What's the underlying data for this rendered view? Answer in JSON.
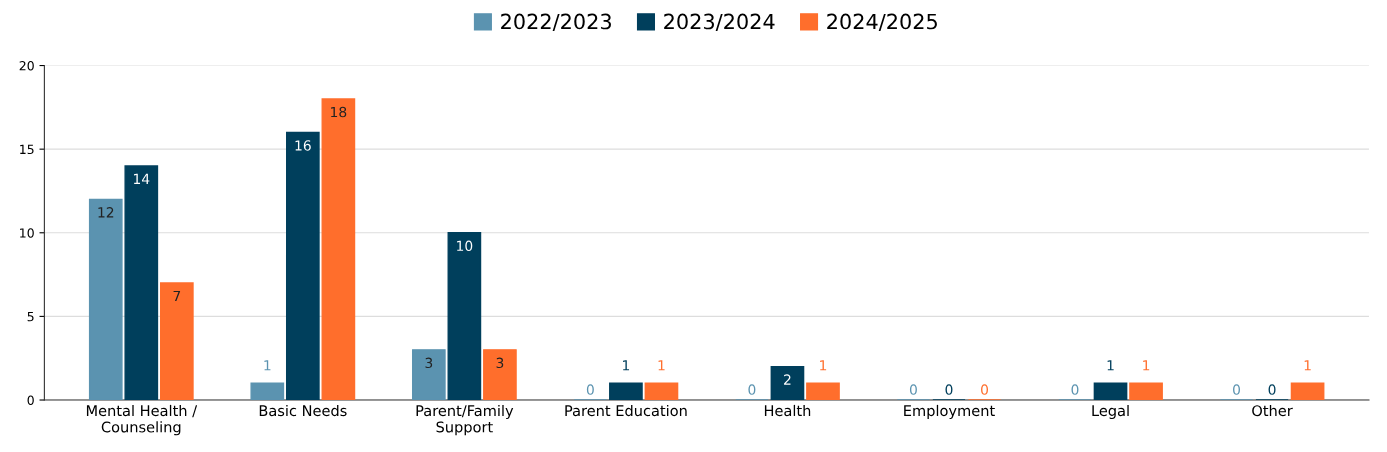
{
  "chart_data": {
    "type": "bar",
    "categories": [
      "Mental Health /\nCounseling",
      "Basic Needs",
      "Parent/Family\nSupport",
      "Parent Education",
      "Health",
      "Employment",
      "Legal",
      "Other"
    ],
    "series": [
      {
        "name": "2022/2023",
        "color": "#5b93b0",
        "values": [
          12,
          1,
          3,
          0,
          0,
          0,
          0,
          0
        ]
      },
      {
        "name": "2023/2024",
        "color": "#003f5c",
        "values": [
          14,
          16,
          10,
          1,
          2,
          0,
          1,
          0
        ]
      },
      {
        "name": "2024/2025",
        "color": "#ff6e2c",
        "values": [
          7,
          18,
          3,
          1,
          1,
          0,
          1,
          1
        ]
      }
    ],
    "ylim": [
      0,
      20
    ],
    "yticks": [
      0,
      5,
      10,
      15,
      20
    ],
    "grid": "y",
    "legend": "top",
    "data_labels": true
  }
}
